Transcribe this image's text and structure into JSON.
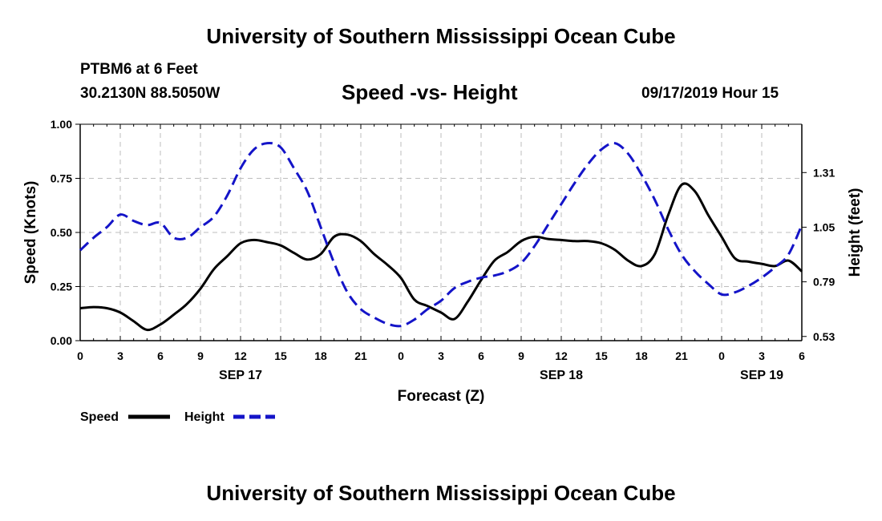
{
  "header": {
    "title": "University of Southern Mississippi Ocean Cube",
    "station": "PTBM6 at 6 Feet",
    "coords": "30.2130N 88.5050W",
    "chart_title": "Speed -vs- Height",
    "timestamp": "09/17/2019 Hour 15"
  },
  "footer": {
    "title": "University of Southern Mississippi Ocean Cube"
  },
  "colors": {
    "speed": "#000000",
    "height": "#1414c8",
    "grid": "#bdbdbd"
  },
  "chart_data": {
    "type": "line",
    "title": "Speed -vs- Height",
    "xlabel": "Forecast (Z)",
    "ylabel": "Speed (Knots)",
    "y2label": "Height (feet)",
    "x_unit": "hours since 2019-09-17 00Z",
    "xlim": [
      0,
      54
    ],
    "ylim": [
      0,
      1.0
    ],
    "y2lim": [
      0.51,
      1.54
    ],
    "xticks": [
      0,
      3,
      6,
      9,
      12,
      15,
      18,
      21,
      24,
      27,
      30,
      33,
      36,
      39,
      42,
      45,
      48,
      51,
      54
    ],
    "xtick_labels": [
      "0",
      "3",
      "6",
      "9",
      "12",
      "15",
      "18",
      "21",
      "0",
      "3",
      "6",
      "9",
      "12",
      "15",
      "18",
      "21",
      "0",
      "3",
      "6"
    ],
    "yticks": [
      0.0,
      0.25,
      0.5,
      0.75,
      1.0
    ],
    "ytick_labels": [
      "0.00",
      "0.25",
      "0.50",
      "0.75",
      "1.00"
    ],
    "y2ticks": [
      0.53,
      0.79,
      1.05,
      1.31
    ],
    "y2tick_labels": [
      "0.53",
      "0.79",
      "1.05",
      "1.31"
    ],
    "date_labels": [
      {
        "x": 12,
        "label": "SEP 17"
      },
      {
        "x": 36,
        "label": "SEP 18"
      },
      {
        "x": 51,
        "label": "SEP 19"
      }
    ],
    "grid": true,
    "legend": "bottom-left",
    "series": [
      {
        "name": "Speed",
        "axis": "left",
        "style": "solid",
        "x": [
          0,
          1,
          2,
          3,
          4,
          5,
          6,
          7,
          8,
          9,
          10,
          11,
          12,
          13,
          14,
          15,
          16,
          17,
          18,
          19,
          20,
          21,
          22,
          23,
          24,
          25,
          26,
          27,
          28,
          29,
          30,
          31,
          32,
          33,
          34,
          35,
          36,
          37,
          38,
          39,
          40,
          41,
          42,
          43,
          44,
          45,
          46,
          47,
          48,
          49,
          50,
          51,
          52,
          53,
          54
        ],
        "values": [
          0.15,
          0.155,
          0.15,
          0.13,
          0.09,
          0.05,
          0.075,
          0.12,
          0.17,
          0.24,
          0.33,
          0.39,
          0.45,
          0.465,
          0.455,
          0.44,
          0.405,
          0.375,
          0.4,
          0.48,
          0.49,
          0.46,
          0.4,
          0.35,
          0.29,
          0.19,
          0.16,
          0.13,
          0.1,
          0.18,
          0.28,
          0.37,
          0.41,
          0.46,
          0.48,
          0.47,
          0.465,
          0.46,
          0.46,
          0.45,
          0.42,
          0.37,
          0.345,
          0.4,
          0.58,
          0.72,
          0.69,
          0.58,
          0.48,
          0.38,
          0.365,
          0.355,
          0.345,
          0.37,
          0.32
        ]
      },
      {
        "name": "Height",
        "axis": "right",
        "style": "dashed",
        "x": [
          0,
          1,
          2,
          3,
          4,
          5,
          6,
          7,
          8,
          9,
          10,
          11,
          12,
          13,
          14,
          15,
          16,
          17,
          18,
          19,
          20,
          21,
          22,
          23,
          24,
          25,
          26,
          27,
          28,
          29,
          30,
          31,
          32,
          33,
          34,
          35,
          36,
          37,
          38,
          39,
          40,
          41,
          42,
          43,
          44,
          45,
          46,
          47,
          48,
          49,
          50,
          51,
          52,
          53,
          54
        ],
        "values": [
          0.94,
          1.0,
          1.05,
          1.11,
          1.08,
          1.06,
          1.07,
          1.0,
          1.0,
          1.05,
          1.1,
          1.2,
          1.33,
          1.42,
          1.45,
          1.43,
          1.33,
          1.22,
          1.05,
          0.88,
          0.74,
          0.66,
          0.62,
          0.59,
          0.58,
          0.61,
          0.66,
          0.7,
          0.76,
          0.79,
          0.81,
          0.82,
          0.84,
          0.88,
          0.96,
          1.06,
          1.16,
          1.26,
          1.35,
          1.42,
          1.45,
          1.4,
          1.3,
          1.18,
          1.04,
          0.92,
          0.84,
          0.78,
          0.73,
          0.74,
          0.77,
          0.81,
          0.86,
          0.92,
          1.06
        ]
      }
    ]
  }
}
